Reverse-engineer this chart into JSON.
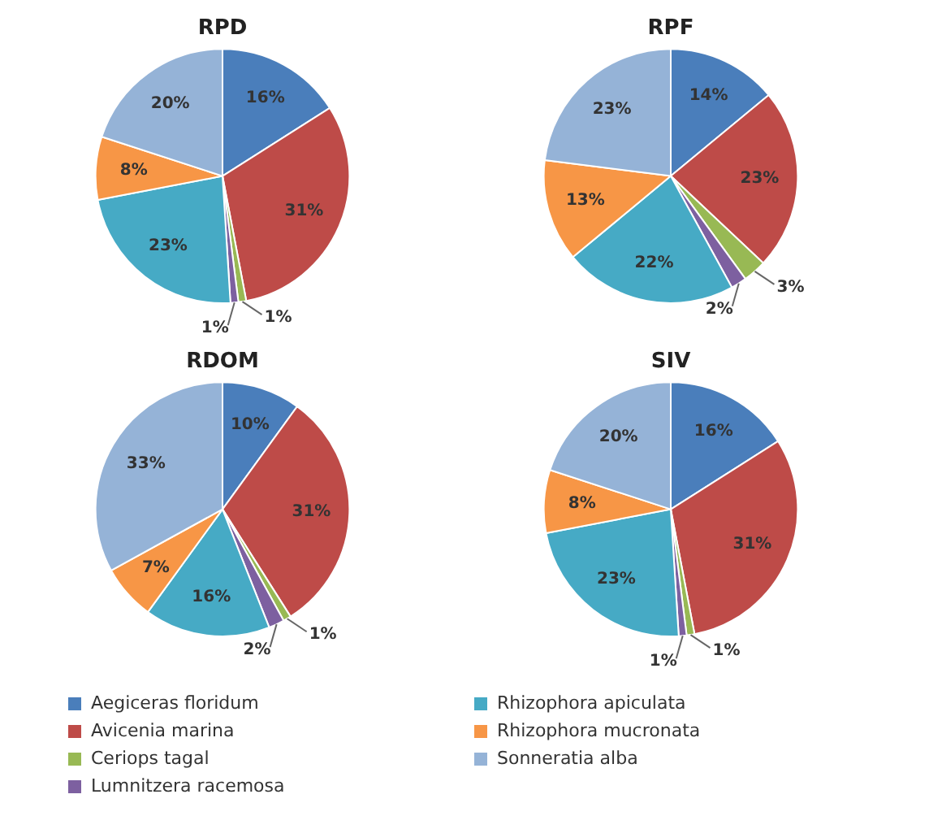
{
  "chart_data": [
    {
      "type": "pie",
      "title": "RPD",
      "categories": [
        "Aegiceras floridum",
        "Avicenia marina",
        "Ceriops tagal",
        "Lumnitzera racemosa",
        "Rhizophora apiculata",
        "Rhizophora mucronata",
        "Sonneratia alba"
      ],
      "values": [
        16,
        31,
        1,
        1,
        23,
        8,
        20
      ],
      "value_labels": [
        "16%",
        "31%",
        "1%",
        "1%",
        "23%",
        "8%",
        "20%"
      ],
      "colors": [
        "#4a7ebb",
        "#be4b48",
        "#98b954",
        "#7d60a0",
        "#46aac5",
        "#f79646",
        "#95b3d7"
      ],
      "legend": "bottom"
    },
    {
      "type": "pie",
      "title": "RPF",
      "categories": [
        null,
        null,
        null,
        null,
        null,
        null,
        null
      ],
      "values": [
        14,
        23,
        3,
        2,
        22,
        13,
        23
      ],
      "value_labels": [
        "14%",
        "23%",
        "3%",
        "2%",
        "22%",
        "13%",
        "23%"
      ],
      "colors": [
        "#4a7ebb",
        "#be4b48",
        "#98b954",
        "#7d60a0",
        "#46aac5",
        "#f79646",
        "#95b3d7"
      ]
    },
    {
      "type": "pie",
      "title": "RDOM",
      "categories": [
        null,
        null,
        null,
        null,
        null,
        null,
        null
      ],
      "values": [
        10,
        31,
        1,
        2,
        16,
        7,
        33
      ],
      "value_labels": [
        "10%",
        "31%",
        "1%",
        "2%",
        "16%",
        "7%",
        "33%"
      ],
      "colors": [
        "#4a7ebb",
        "#be4b48",
        "#98b954",
        "#7d60a0",
        "#46aac5",
        "#f79646",
        "#95b3d7"
      ]
    },
    {
      "type": "pie",
      "title": "SIV",
      "categories": [
        null,
        null,
        null,
        null,
        null,
        null,
        null
      ],
      "values": [
        16,
        31,
        1,
        1,
        23,
        8,
        20
      ],
      "value_labels": [
        "16%",
        "31%",
        "1%",
        "1%",
        "23%",
        "8%",
        "20%"
      ],
      "colors": [
        "#4a7ebb",
        "#be4b48",
        "#98b954",
        "#7d60a0",
        "#46aac5",
        "#f79646",
        "#95b3d7"
      ]
    }
  ]
}
